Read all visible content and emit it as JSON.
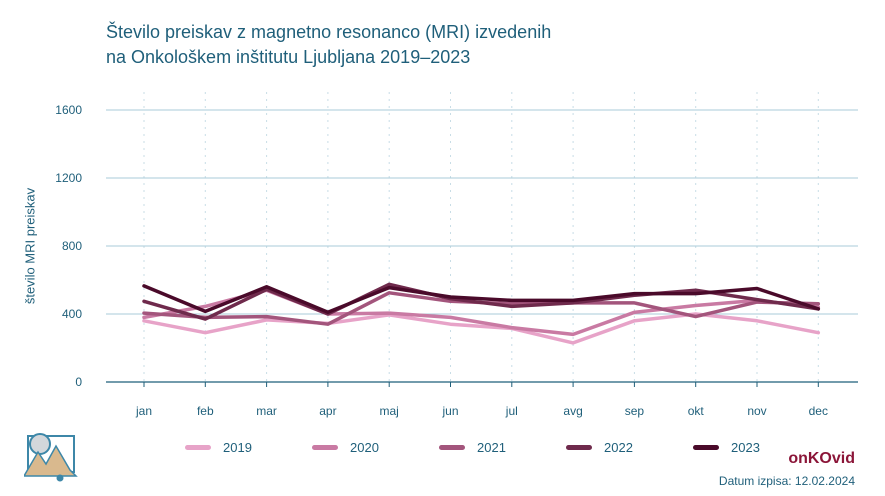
{
  "title_lines": [
    "Število preiskav z magnetno resonanco (MRI) izvedenih",
    "na Onkološkem inštitutu Ljubljana 2019–2023"
  ],
  "brand": "onKOvid",
  "footnote": "Datum izpisa: 12.02.2024",
  "colors": {
    "title": "#1f5f7a",
    "grid": "#a9cbd8",
    "axis": "#1f5f7a",
    "brand": "#8b1538"
  },
  "chart_data": {
    "type": "line",
    "title": "Število preiskav z magnetno resonanco (MRI) izvedenih na Onkološkem inštitutu Ljubljana 2019–2023",
    "ylabel": "število MRI preiskav",
    "xlabel": "",
    "categories": [
      "jan",
      "feb",
      "mar",
      "apr",
      "maj",
      "jun",
      "jul",
      "avg",
      "sep",
      "okt",
      "nov",
      "dec"
    ],
    "yticks": [
      0,
      400,
      800,
      1200,
      1600
    ],
    "ylim": [
      0,
      1600
    ],
    "grid": "horizontal",
    "legend": "bottom",
    "series": [
      {
        "name": "2019",
        "color": "#e7a3c8",
        "values": [
          360,
          290,
          365,
          345,
          395,
          340,
          315,
          230,
          360,
          400,
          360,
          290
        ]
      },
      {
        "name": "2020",
        "color": "#c97aa3",
        "values": [
          380,
          445,
          540,
          400,
          405,
          380,
          320,
          280,
          410,
          450,
          480,
          440
        ]
      },
      {
        "name": "2021",
        "color": "#a3557c",
        "values": [
          405,
          380,
          385,
          340,
          525,
          475,
          460,
          465,
          465,
          385,
          470,
          460
        ]
      },
      {
        "name": "2022",
        "color": "#6f2a4c",
        "values": [
          475,
          370,
          545,
          400,
          575,
          490,
          445,
          465,
          510,
          540,
          485,
          430
        ]
      },
      {
        "name": "2023",
        "color": "#4a0a2a",
        "values": [
          565,
          415,
          560,
          410,
          555,
          500,
          480,
          480,
          520,
          520,
          550,
          430
        ]
      }
    ]
  }
}
